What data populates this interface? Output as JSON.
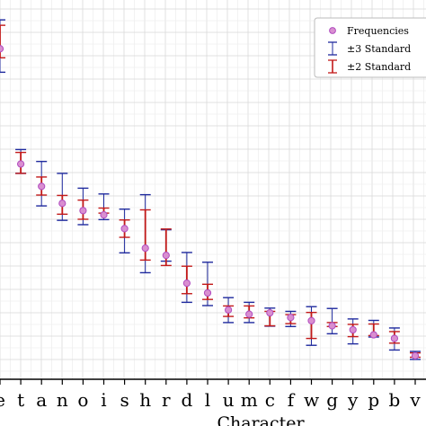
{
  "chart_data": {
    "type": "scatter",
    "title": "",
    "xlabel": "Character",
    "ylabel": "",
    "grid": true,
    "legend_placement": "top-right",
    "categories": [
      "e",
      "t",
      "a",
      "n",
      "o",
      "i",
      "s",
      "h",
      "r",
      "d",
      "l",
      "u",
      "m",
      "c",
      "f",
      "w",
      "g",
      "y",
      "p",
      "b",
      "v"
    ],
    "frequency": [
      0.1215,
      0.0896,
      0.0834,
      0.0787,
      0.0767,
      0.0755,
      0.0717,
      0.0663,
      0.0643,
      0.0566,
      0.0539,
      0.0492,
      0.048,
      0.0484,
      0.0471,
      0.0462,
      0.0448,
      0.0437,
      0.0423,
      0.0413,
      0.0365
    ],
    "ci3_low": [
      0.115,
      0.087,
      0.078,
      0.074,
      0.0728,
      0.0742,
      0.065,
      0.0595,
      0.0627,
      0.0513,
      0.0504,
      0.0457,
      0.0457,
      0.0447,
      0.0446,
      0.0394,
      0.0426,
      0.0398,
      0.0417,
      0.0381,
      0.0355
    ],
    "ci3_high": [
      0.1295,
      0.0936,
      0.0903,
      0.087,
      0.0829,
      0.0813,
      0.0771,
      0.0811,
      0.0714,
      0.0651,
      0.0624,
      0.0526,
      0.0513,
      0.0497,
      0.0488,
      0.0501,
      0.0496,
      0.0467,
      0.0463,
      0.0442,
      0.0377
    ],
    "ci2_low": [
      0.119,
      0.087,
      0.081,
      0.0757,
      0.0743,
      0.076,
      0.0693,
      0.063,
      0.0615,
      0.0537,
      0.0521,
      0.0474,
      0.047,
      0.0448,
      0.0454,
      0.0413,
      0.0446,
      0.0418,
      0.0421,
      0.04,
      0.0361
    ],
    "ci2_high": [
      0.128,
      0.0928,
      0.086,
      0.0809,
      0.0796,
      0.0774,
      0.0741,
      0.0769,
      0.0716,
      0.0613,
      0.0563,
      0.0503,
      0.0503,
      0.0488,
      0.0479,
      0.0485,
      0.0457,
      0.0452,
      0.0453,
      0.0432,
      0.0373
    ],
    "ylim": [
      0.03,
      0.135
    ],
    "legend": [
      {
        "marker": "circle",
        "label": "Frequencies"
      },
      {
        "marker": "errorbar-blue",
        "label": "±3 Standard"
      },
      {
        "marker": "errorbar-red",
        "label": "±2 Standard"
      }
    ]
  },
  "colors": {
    "point_fill": "#d98fd0",
    "point_edge": "#b04cc0",
    "ci3": "#1f2a9e",
    "ci2": "#c21a1a",
    "grid_major": "#d9d9d9",
    "grid_minor": "#efefef",
    "axis": "#000000"
  }
}
